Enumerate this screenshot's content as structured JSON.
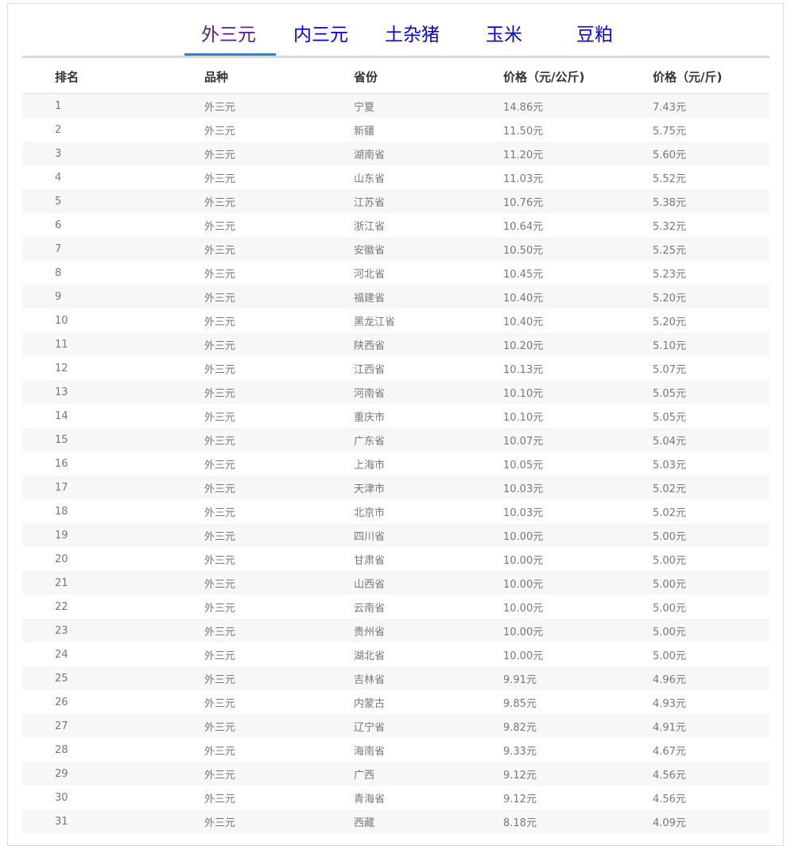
{
  "tabs": [
    {
      "label": "外三元",
      "active": true
    },
    {
      "label": "内三元",
      "active": false
    },
    {
      "label": "土杂猪",
      "active": false
    },
    {
      "label": "玉米",
      "active": false
    },
    {
      "label": "豆粕",
      "active": false
    }
  ],
  "colors": {
    "active_tab": "#551a8b",
    "tab_link": "#0000ee",
    "active_underline": "#1e88e5",
    "stripe": "#f7f7f7"
  },
  "table": {
    "headers": [
      "排名",
      "品种",
      "省份",
      "价格（元/公斤)",
      "价格（元/斤)"
    ],
    "rows": [
      [
        "1",
        "外三元",
        "宁夏",
        "14.86元",
        "7.43元"
      ],
      [
        "2",
        "外三元",
        "新疆",
        "11.50元",
        "5.75元"
      ],
      [
        "3",
        "外三元",
        "湖南省",
        "11.20元",
        "5.60元"
      ],
      [
        "4",
        "外三元",
        "山东省",
        "11.03元",
        "5.52元"
      ],
      [
        "5",
        "外三元",
        "江苏省",
        "10.76元",
        "5.38元"
      ],
      [
        "6",
        "外三元",
        "浙江省",
        "10.64元",
        "5.32元"
      ],
      [
        "7",
        "外三元",
        "安徽省",
        "10.50元",
        "5.25元"
      ],
      [
        "8",
        "外三元",
        "河北省",
        "10.45元",
        "5.23元"
      ],
      [
        "9",
        "外三元",
        "福建省",
        "10.40元",
        "5.20元"
      ],
      [
        "10",
        "外三元",
        "黑龙江省",
        "10.40元",
        "5.20元"
      ],
      [
        "11",
        "外三元",
        "陕西省",
        "10.20元",
        "5.10元"
      ],
      [
        "12",
        "外三元",
        "江西省",
        "10.13元",
        "5.07元"
      ],
      [
        "13",
        "外三元",
        "河南省",
        "10.10元",
        "5.05元"
      ],
      [
        "14",
        "外三元",
        "重庆市",
        "10.10元",
        "5.05元"
      ],
      [
        "15",
        "外三元",
        "广东省",
        "10.07元",
        "5.04元"
      ],
      [
        "16",
        "外三元",
        "上海市",
        "10.05元",
        "5.03元"
      ],
      [
        "17",
        "外三元",
        "天津市",
        "10.03元",
        "5.02元"
      ],
      [
        "18",
        "外三元",
        "北京市",
        "10.03元",
        "5.02元"
      ],
      [
        "19",
        "外三元",
        "四川省",
        "10.00元",
        "5.00元"
      ],
      [
        "20",
        "外三元",
        "甘肃省",
        "10.00元",
        "5.00元"
      ],
      [
        "21",
        "外三元",
        "山西省",
        "10.00元",
        "5.00元"
      ],
      [
        "22",
        "外三元",
        "云南省",
        "10.00元",
        "5.00元"
      ],
      [
        "23",
        "外三元",
        "贵州省",
        "10.00元",
        "5.00元"
      ],
      [
        "24",
        "外三元",
        "湖北省",
        "10.00元",
        "5.00元"
      ],
      [
        "25",
        "外三元",
        "吉林省",
        "9.91元",
        "4.96元"
      ],
      [
        "26",
        "外三元",
        "内蒙古",
        "9.85元",
        "4.93元"
      ],
      [
        "27",
        "外三元",
        "辽宁省",
        "9.82元",
        "4.91元"
      ],
      [
        "28",
        "外三元",
        "海南省",
        "9.33元",
        "4.67元"
      ],
      [
        "29",
        "外三元",
        "广西",
        "9.12元",
        "4.56元"
      ],
      [
        "30",
        "外三元",
        "青海省",
        "9.12元",
        "4.56元"
      ],
      [
        "31",
        "外三元",
        "西藏",
        "8.18元",
        "4.09元"
      ]
    ]
  }
}
